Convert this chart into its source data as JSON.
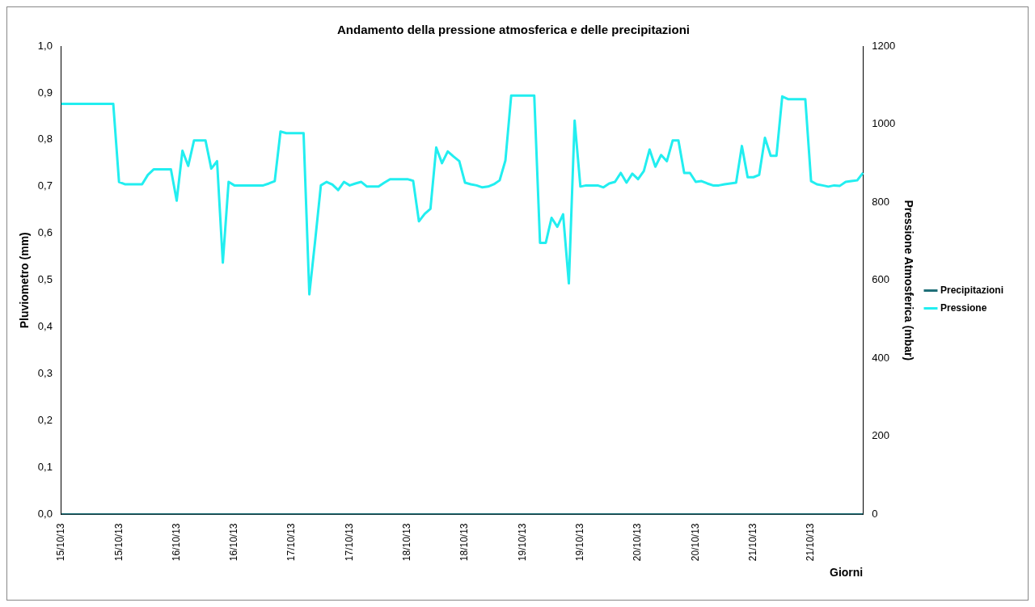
{
  "chart_data": {
    "type": "line",
    "title": "Andamento della pressione atmosferica e delle precipitazioni",
    "xlabel": "Giorni",
    "ylabel": "Pluviometro (mm)",
    "y2label": "Pressione Atmosferica (mbar)",
    "categories": [
      "15/10/13",
      null,
      null,
      null,
      null,
      null,
      null,
      null,
      null,
      null,
      "15/10/13",
      null,
      null,
      null,
      null,
      null,
      null,
      null,
      null,
      null,
      "16/10/13",
      null,
      null,
      null,
      null,
      null,
      null,
      null,
      null,
      null,
      "16/10/13",
      null,
      null,
      null,
      null,
      null,
      null,
      null,
      null,
      null,
      "17/10/13",
      null,
      null,
      null,
      null,
      null,
      null,
      null,
      null,
      null,
      "17/10/13",
      null,
      null,
      null,
      null,
      null,
      null,
      null,
      null,
      null,
      "18/10/13",
      null,
      null,
      null,
      null,
      null,
      null,
      null,
      null,
      null,
      "18/10/13",
      null,
      null,
      null,
      null,
      null,
      null,
      null,
      null,
      null,
      "19/10/13",
      null,
      null,
      null,
      null,
      null,
      null,
      null,
      null,
      null,
      "19/10/13",
      null,
      null,
      null,
      null,
      null,
      null,
      null,
      null,
      null,
      "20/10/13",
      null,
      null,
      null,
      null,
      null,
      null,
      null,
      null,
      null,
      "20/10/13",
      null,
      null,
      null,
      null,
      null,
      null,
      null,
      null,
      null,
      "21/10/13",
      null,
      null,
      null,
      null,
      null,
      null,
      null,
      null,
      null,
      "21/10/13",
      null,
      null,
      null,
      null,
      null,
      null,
      null,
      null,
      null
    ],
    "ylim": [
      0,
      1
    ],
    "yticks": [
      {
        "value": 0,
        "label": "0,0"
      },
      {
        "value": 0.1,
        "label": "0,1"
      },
      {
        "value": 0.2,
        "label": "0,2"
      },
      {
        "value": 0.3,
        "label": "0,3"
      },
      {
        "value": 0.4,
        "label": "0,4"
      },
      {
        "value": 0.5,
        "label": "0,5"
      },
      {
        "value": 0.6,
        "label": "0,6"
      },
      {
        "value": 0.7,
        "label": "0,7"
      },
      {
        "value": 0.8,
        "label": "0,8"
      },
      {
        "value": 0.9,
        "label": "0,9"
      },
      {
        "value": 1,
        "label": "1,0"
      }
    ],
    "y2lim": [
      0,
      1200
    ],
    "y2ticks": [
      0,
      200,
      400,
      600,
      800,
      1000,
      1200
    ],
    "grid": false,
    "legend": "right",
    "marker": "none",
    "line_style": "solid",
    "series": [
      {
        "name": "Precipitazioni",
        "color": "#1f6f78",
        "values": [
          0,
          0,
          0,
          0,
          0,
          0,
          0,
          0,
          0,
          0,
          0,
          0,
          0,
          0,
          0,
          0,
          0,
          0,
          0,
          0,
          0,
          0,
          0,
          0,
          0,
          0,
          0,
          0,
          0,
          0,
          0,
          0,
          0,
          0,
          0,
          0,
          0,
          0,
          0,
          0,
          0,
          0,
          0,
          0,
          0,
          0,
          0,
          0,
          0,
          0,
          0,
          0,
          0,
          0,
          0,
          0,
          0,
          0,
          0,
          0,
          0,
          0,
          0,
          0,
          0,
          0,
          0,
          0,
          0,
          0,
          0,
          0,
          0,
          0,
          0,
          0,
          0,
          0,
          0,
          0,
          0,
          0,
          0,
          0,
          0,
          0,
          0,
          0,
          0,
          0,
          0,
          0,
          0,
          0,
          0,
          0,
          0,
          0,
          0,
          0,
          0,
          0,
          0,
          0,
          0,
          0,
          0,
          0,
          0,
          0,
          0,
          0,
          0,
          0,
          0,
          0,
          0,
          0,
          0,
          0,
          0,
          0,
          0,
          0,
          0,
          0,
          0,
          0,
          0,
          0,
          0,
          0,
          0,
          0,
          0,
          0,
          0,
          0,
          0,
          0
        ]
      },
      {
        "name": "Pressione",
        "color": "#22eef0",
        "axis": "y2",
        "values": [
          1052,
          1052,
          1052,
          1052,
          1052,
          1052,
          1052,
          1052,
          1052,
          1052,
          852,
          846,
          846,
          846,
          846,
          870,
          884,
          884,
          884,
          884,
          804,
          932,
          893,
          958,
          958,
          958,
          886,
          905,
          645,
          852,
          843,
          843,
          843,
          843,
          843,
          843,
          848,
          854,
          981,
          977,
          977,
          977,
          977,
          564,
          700,
          843,
          852,
          845,
          831,
          852,
          843,
          848,
          852,
          840,
          840,
          840,
          850,
          859,
          859,
          859,
          859,
          855,
          751,
          770,
          783,
          940,
          900,
          930,
          917,
          905,
          850,
          846,
          843,
          838,
          840,
          846,
          856,
          907,
          1073,
          1073,
          1073,
          1073,
          1073,
          696,
          696,
          760,
          737,
          769,
          592,
          1009,
          840,
          843,
          843,
          843,
          838,
          848,
          852,
          875,
          850,
          873,
          859,
          880,
          935,
          891,
          921,
          905,
          958,
          958,
          875,
          875,
          852,
          854,
          848,
          843,
          843,
          846,
          848,
          850,
          944,
          864,
          864,
          870,
          965,
          919,
          919,
          1071,
          1064,
          1064,
          1064,
          1064,
          854,
          846,
          843,
          840,
          843,
          842,
          852,
          854,
          856,
          875
        ]
      }
    ]
  }
}
